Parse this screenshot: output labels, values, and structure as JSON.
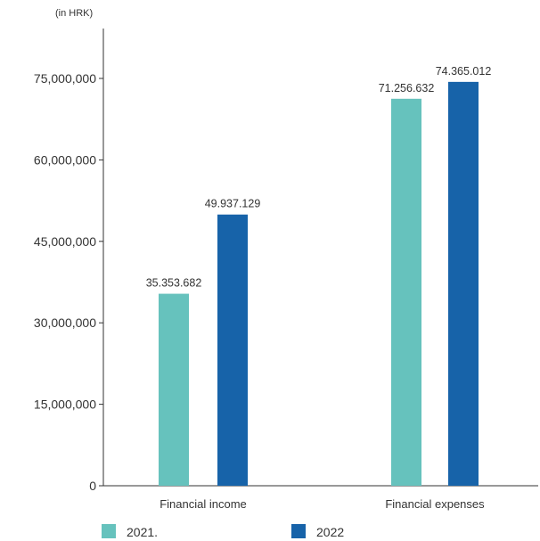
{
  "chart_data": {
    "type": "bar",
    "unit_label": "(in HRK)",
    "categories": [
      "Financial income",
      "Financial expenses"
    ],
    "series": [
      {
        "name": "2021.",
        "color": "#66c2bd",
        "values": [
          35353682,
          71256632
        ],
        "value_labels": [
          "35.353.682",
          "71.256.632"
        ]
      },
      {
        "name": "2022",
        "color": "#1763a9",
        "values": [
          49937129,
          74365012
        ],
        "value_labels": [
          "49.937.129",
          "74.365.012"
        ]
      }
    ],
    "yticks": [
      0,
      15000000,
      30000000,
      45000000,
      60000000,
      75000000
    ],
    "ytick_labels": [
      "0",
      "15,000,000",
      "30,000,000",
      "45,000,000",
      "60,000,000",
      "75,000,000"
    ],
    "ylim": [
      0,
      84000000
    ],
    "grid": false,
    "legend_position": "bottom"
  }
}
